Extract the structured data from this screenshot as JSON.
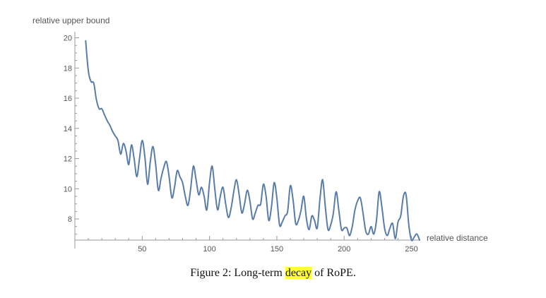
{
  "chart_data": {
    "type": "line",
    "ylabel": "relative upper bound",
    "xlabel": "relative distance",
    "xlim": [
      0,
      256
    ],
    "ylim": [
      6.6,
      20.4
    ],
    "xticks": [
      50,
      100,
      150,
      200,
      250
    ],
    "yticks": [
      8,
      10,
      12,
      14,
      16,
      18,
      20
    ],
    "xtick_labels": [
      "50",
      "100",
      "150",
      "200",
      "250"
    ],
    "ytick_labels": [
      "8",
      "10",
      "12",
      "14",
      "16",
      "18",
      "20"
    ],
    "x_minor_step": 10,
    "y_minor_step": 0.5,
    "color": "#5a7ca8",
    "grid": false,
    "series": [
      {
        "x": [
          8,
          10,
          12,
          14,
          16,
          18,
          20,
          22,
          24,
          26,
          28,
          30,
          32,
          34,
          36,
          38,
          40,
          42,
          44,
          46,
          48,
          50,
          52,
          54,
          56,
          58,
          60,
          62,
          64,
          66,
          68,
          70,
          72,
          74,
          76,
          78,
          80,
          82,
          84,
          86,
          88,
          90,
          92,
          94,
          96,
          98,
          100,
          102,
          104,
          106,
          108,
          110,
          112,
          114,
          116,
          118,
          120,
          122,
          124,
          126,
          128,
          130,
          132,
          134,
          136,
          138,
          140,
          142,
          144,
          146,
          148,
          150,
          152,
          154,
          156,
          158,
          160,
          162,
          164,
          166,
          168,
          170,
          172,
          174,
          176,
          178,
          180,
          182,
          184,
          186,
          188,
          190,
          192,
          194,
          196,
          198,
          200,
          202,
          204,
          206,
          208,
          210,
          212,
          214,
          216,
          218,
          220,
          222,
          224,
          226,
          228,
          230,
          232,
          234,
          236,
          238,
          240,
          242,
          244,
          246,
          248,
          250,
          252,
          254,
          256
        ],
        "values": [
          19.8,
          17.8,
          17.1,
          17.0,
          15.9,
          15.3,
          15.3,
          14.9,
          14.5,
          14.2,
          13.8,
          13.5,
          13.2,
          12.3,
          13.0,
          12.5,
          11.6,
          12.9,
          12.0,
          10.8,
          12.0,
          13.2,
          12.1,
          10.3,
          11.8,
          12.8,
          11.6,
          9.9,
          10.7,
          11.4,
          11.8,
          10.8,
          9.4,
          10.1,
          11.2,
          10.8,
          10.4,
          9.5,
          8.9,
          10.0,
          11.5,
          10.6,
          9.6,
          10.1,
          9.5,
          8.6,
          10.4,
          11.5,
          9.9,
          8.6,
          9.5,
          10.1,
          9.0,
          8.1,
          8.7,
          9.8,
          10.6,
          9.6,
          8.4,
          9.0,
          9.9,
          9.2,
          8.0,
          8.4,
          8.9,
          9.0,
          10.3,
          9.5,
          7.9,
          8.8,
          10.4,
          9.4,
          7.6,
          7.8,
          8.2,
          8.5,
          10.2,
          9.3,
          7.7,
          7.9,
          8.6,
          9.5,
          8.0,
          7.3,
          8.2,
          7.9,
          7.4,
          9.3,
          10.6,
          8.8,
          7.3,
          7.6,
          8.4,
          9.8,
          8.6,
          7.3,
          7.4,
          7.4,
          6.9,
          7.5,
          8.6,
          9.2,
          9.4,
          8.4,
          7.2,
          7.0,
          7.5,
          7.0,
          7.9,
          9.8,
          8.8,
          7.4,
          6.9,
          7.4,
          7.7,
          6.7,
          7.8,
          8.2,
          9.5,
          9.6,
          7.6,
          6.6,
          6.8,
          7.0,
          6.6
        ]
      }
    ]
  },
  "caption": {
    "before": "Figure 2: Long-term ",
    "highlight": "decay",
    "after": " of RoPE."
  }
}
